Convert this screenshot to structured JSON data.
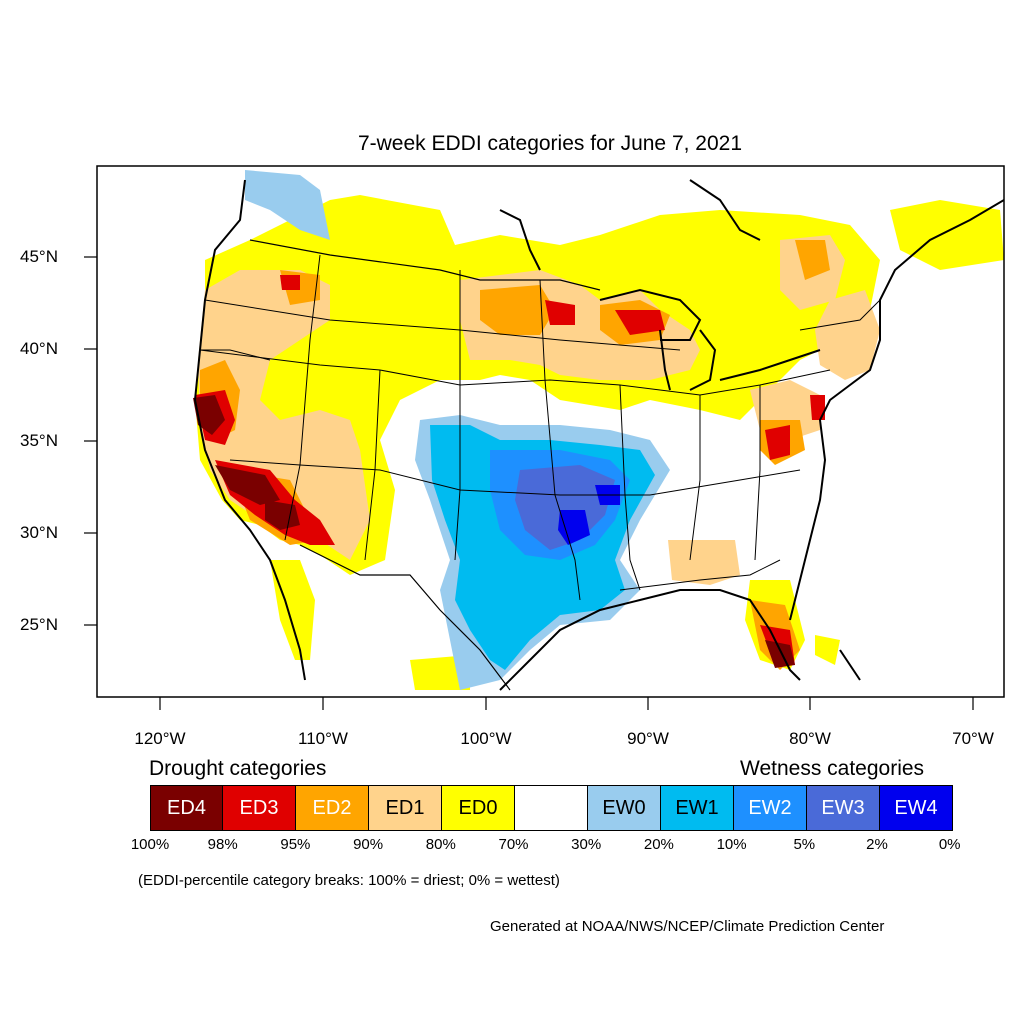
{
  "title": "7-week EDDI categories for June 7, 2021",
  "lat_ticks": [
    "45°N",
    "40°N",
    "35°N",
    "30°N",
    "25°N"
  ],
  "lon_ticks": [
    "120°W",
    "110°W",
    "100°W",
    "90°W",
    "80°W",
    "70°W"
  ],
  "drought_heading": "Drought categories",
  "wetness_heading": "Wetness categories",
  "categories": [
    {
      "label": "ED4",
      "color": "#7a0000",
      "text_color": "#ffffff"
    },
    {
      "label": "ED3",
      "color": "#e00000",
      "text_color": "#ffffff"
    },
    {
      "label": "ED2",
      "color": "#ffa500",
      "text_color": "#ffffff"
    },
    {
      "label": "ED1",
      "color": "#ffd38c",
      "text_color": "#000000"
    },
    {
      "label": "ED0",
      "color": "#ffff00",
      "text_color": "#000000"
    },
    {
      "label": "",
      "color": "#ffffff",
      "text_color": "#000000"
    },
    {
      "label": "EW0",
      "color": "#99ccee",
      "text_color": "#000000"
    },
    {
      "label": "EW1",
      "color": "#00bbf0",
      "text_color": "#000000"
    },
    {
      "label": "EW2",
      "color": "#1e90ff",
      "text_color": "#ffffff"
    },
    {
      "label": "EW3",
      "color": "#4a6ad8",
      "text_color": "#ffffff"
    },
    {
      "label": "EW4",
      "color": "#0000ee",
      "text_color": "#ffffff"
    }
  ],
  "percent_breaks": [
    "100%",
    "98%",
    "95%",
    "90%",
    "80%",
    "70%",
    "30%",
    "20%",
    "10%",
    "5%",
    "2%",
    "0%"
  ],
  "note": "(EDDI-percentile category breaks: 100% = driest; 0% = wettest)",
  "credit": "Generated at NOAA/NWS/NCEP/Climate Prediction Center"
}
